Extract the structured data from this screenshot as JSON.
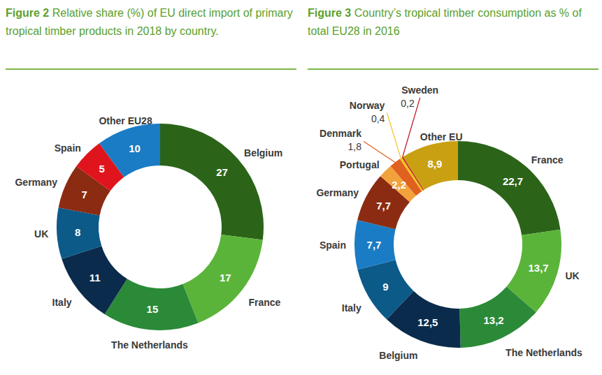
{
  "chart_data": [
    {
      "type": "pie",
      "title": "Figure 2 Relative share (%) of EU direct import of primary tropical timber products in 2018 by country.",
      "categories": [
        "Belgium",
        "France",
        "The Netherlands",
        "Italy",
        "UK",
        "Germany",
        "Spain",
        "Other EU28"
      ],
      "values": [
        27,
        17,
        15,
        11,
        8,
        7,
        5,
        10
      ],
      "colors": [
        "#2b6419",
        "#5bb43a",
        "#2a8a38",
        "#0b2b4c",
        "#0b5a88",
        "#8b2b12",
        "#e0141d",
        "#1a7cc4"
      ],
      "data_labels": true
    },
    {
      "type": "pie",
      "title": "Figure 3 Country’s tropical timber consumption as % of total EU28 in 2016",
      "categories": [
        "France",
        "UK",
        "The Netherlands",
        "Belgium",
        "Italy",
        "Spain",
        "Germany",
        "Portugal",
        "Denmark",
        "Norway",
        "Sweden",
        "Other EU"
      ],
      "values": [
        22.7,
        13.7,
        13.2,
        12.5,
        9,
        7.7,
        7.7,
        2.2,
        1.8,
        0.4,
        0.2,
        8.9
      ],
      "value_labels": [
        "22,7",
        "13,7",
        "13,2",
        "12,5",
        "9",
        "7,7",
        "7,7",
        "2,2",
        "1,8",
        "0,4",
        "0,2",
        "8,9"
      ],
      "colors": [
        "#2b6419",
        "#5bb43a",
        "#2a8a38",
        "#0b2b4c",
        "#0b5a88",
        "#1a7cc4",
        "#8b2b12",
        "#f2a23a",
        "#e0601e",
        "#f0c21e",
        "#c0141d",
        "#c9a012"
      ],
      "data_labels": true
    }
  ]
}
